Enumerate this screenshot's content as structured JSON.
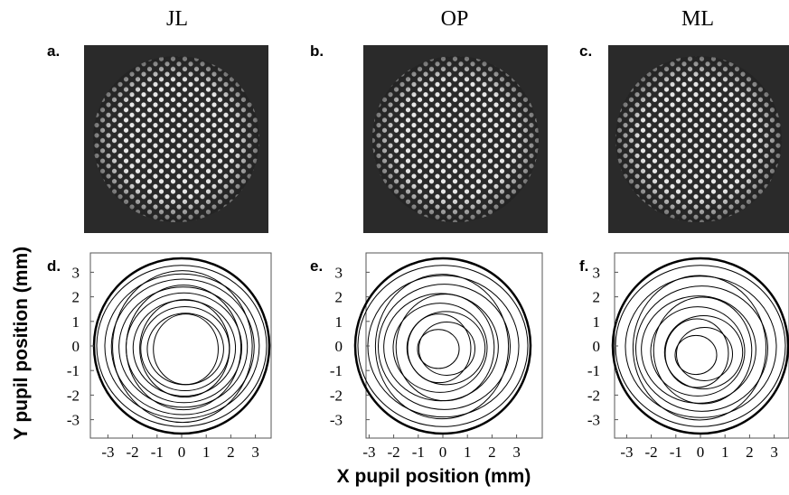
{
  "figure": {
    "columns": [
      {
        "name": "JL",
        "top_label": "a.",
        "bottom_label": "d."
      },
      {
        "name": "OP",
        "top_label": "b.",
        "bottom_label": "e."
      },
      {
        "name": "ML",
        "top_label": "c.",
        "bottom_label": "f."
      }
    ],
    "ticks": [
      -3,
      -2,
      -1,
      0,
      1,
      2,
      3
    ],
    "y_label": "Y pupil position (mm)",
    "x_label": "X pupil position (mm)"
  }
}
